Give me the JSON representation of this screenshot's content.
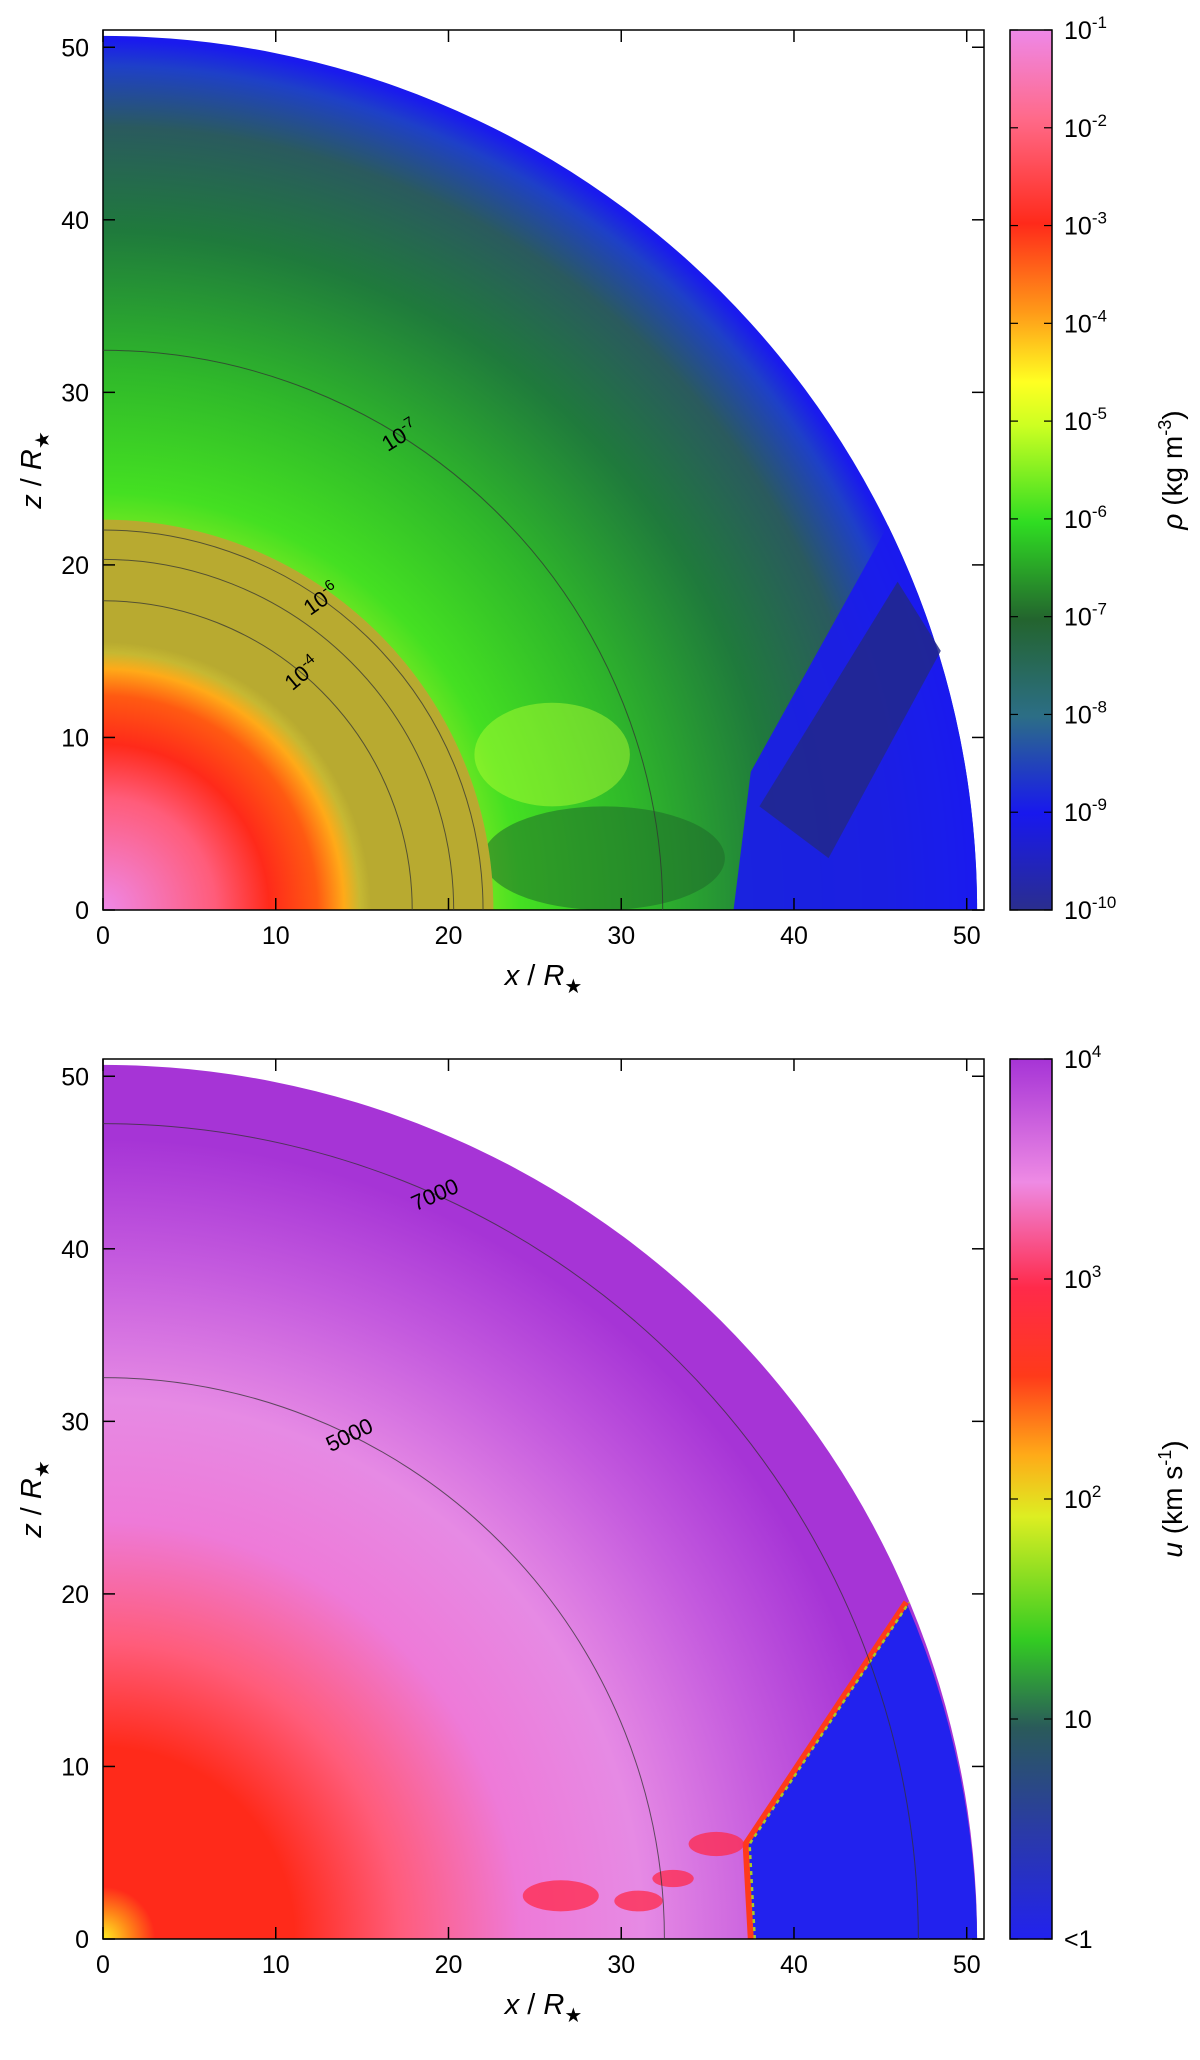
{
  "chart_data": [
    {
      "type": "heatmap",
      "panel": "density",
      "xlabel": {
        "var": "x",
        "sep": " / ",
        "unit": "R",
        "sub": "★"
      },
      "ylabel": {
        "var": "z",
        "sep": " / ",
        "unit": "R",
        "sub": "★"
      },
      "xlim": [
        0,
        51
      ],
      "ylim": [
        0,
        51
      ],
      "x_ticks": [
        "0",
        "10",
        "20",
        "30",
        "40",
        "50"
      ],
      "y_ticks": [
        "0",
        "10",
        "20",
        "30",
        "40",
        "50"
      ],
      "tick_values": [
        0,
        10,
        20,
        30,
        40,
        50
      ],
      "outer_radius": 50.6,
      "colorbar": {
        "title": {
          "var": "ρ",
          "text": " (kg m",
          "sup": "-3",
          "close": ")"
        },
        "scale": "log",
        "range_exp": [
          -10,
          -1
        ],
        "ticks": [
          {
            "base": "10",
            "exp": "-1"
          },
          {
            "base": "10",
            "exp": "-2"
          },
          {
            "base": "10",
            "exp": "-3"
          },
          {
            "base": "10",
            "exp": "-4"
          },
          {
            "base": "10",
            "exp": "-5"
          },
          {
            "base": "10",
            "exp": "-6"
          },
          {
            "base": "10",
            "exp": "-7"
          },
          {
            "base": "10",
            "exp": "-8"
          },
          {
            "base": "10",
            "exp": "-9"
          },
          {
            "base": "10",
            "exp": "-10"
          }
        ],
        "colors": [
          "#2a2e8e",
          "#1818ee",
          "#2c6e86",
          "#23642e",
          "#33ee22",
          "#ffff22",
          "#ff9918",
          "#ff2a1a",
          "#ff6a8a",
          "#ee88e8"
        ]
      },
      "contours": [
        {
          "radius": 17.9,
          "label": {
            "base": "10",
            "exp": "-4"
          }
        },
        {
          "radius": 20.3,
          "label": null
        },
        {
          "radius": 22.0,
          "label": {
            "base": "10",
            "exp": "-6"
          }
        },
        {
          "radius": 32.4,
          "label": {
            "base": "10",
            "exp": "-7"
          }
        }
      ]
    },
    {
      "type": "heatmap",
      "panel": "velocity",
      "xlabel": {
        "var": "x",
        "sep": " / ",
        "unit": "R",
        "sub": "★"
      },
      "ylabel": {
        "var": "z",
        "sep": " / ",
        "unit": "R",
        "sub": "★"
      },
      "xlim": [
        0,
        51
      ],
      "ylim": [
        0,
        51
      ],
      "x_ticks": [
        "0",
        "10",
        "20",
        "30",
        "40",
        "50"
      ],
      "y_ticks": [
        "0",
        "10",
        "20",
        "30",
        "40",
        "50"
      ],
      "tick_values": [
        0,
        10,
        20,
        30,
        40,
        50
      ],
      "outer_radius": 50.6,
      "colorbar": {
        "title": {
          "var": "u",
          "text": " (km s",
          "sup": "-1",
          "close": ")"
        },
        "scale": "log",
        "range_exp": [
          0,
          4
        ],
        "ticks": [
          {
            "base": "10",
            "exp": "4"
          },
          {
            "base": "10",
            "exp": "3"
          },
          {
            "base": "10",
            "exp": "2"
          },
          {
            "base": "10",
            "exp": ""
          },
          {
            "base": "<1",
            "exp": ""
          }
        ],
        "colors": [
          "#2222ee",
          "#2a5a8a",
          "#33cc22",
          "#ffff22",
          "#ff9918",
          "#ff2a1a",
          "#ee88e8",
          "#a634d6"
        ]
      },
      "contours": [
        {
          "radius": 32.5,
          "label": "5000"
        },
        {
          "radius": 47.2,
          "label": "7000"
        }
      ],
      "shock_front_x": 37.5
    }
  ]
}
